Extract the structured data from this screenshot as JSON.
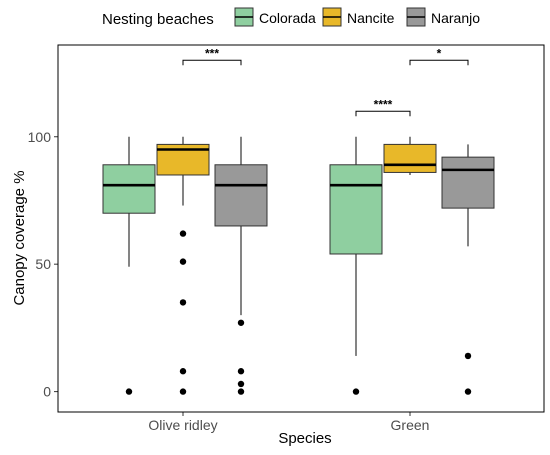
{
  "chart_data": {
    "type": "boxplot",
    "title": "",
    "xlabel": "Species",
    "ylabel": "Canopy coverage %",
    "ylim": [
      -8,
      136
    ],
    "yticks": [
      0,
      50,
      100
    ],
    "grid": false,
    "legend": {
      "title": "Nesting beaches",
      "position": "top",
      "entries": [
        "Colorada",
        "Nancite",
        "Naranjo"
      ]
    },
    "categories": [
      "Olive ridley",
      "Green"
    ],
    "series": [
      {
        "name": "Colorada",
        "color": "#8fcfa0",
        "boxes": [
          {
            "whisker_low": 49,
            "q1": 70,
            "median": 81,
            "q3": 89,
            "whisker_high": 100,
            "outliers": [
              0
            ]
          },
          {
            "whisker_low": 14,
            "q1": 54,
            "median": 81,
            "q3": 89,
            "whisker_high": 100,
            "outliers": [
              0
            ]
          }
        ]
      },
      {
        "name": "Nancite",
        "color": "#e8b829",
        "boxes": [
          {
            "whisker_low": 73,
            "q1": 85,
            "median": 95,
            "q3": 97,
            "whisker_high": 100,
            "outliers": [
              62,
              51,
              35,
              8,
              0
            ]
          },
          {
            "whisker_low": 85,
            "q1": 86,
            "median": 89,
            "q3": 97,
            "whisker_high": 100,
            "outliers": []
          }
        ]
      },
      {
        "name": "Naranjo",
        "color": "#999999",
        "boxes": [
          {
            "whisker_low": 30,
            "q1": 65,
            "median": 81,
            "q3": 89,
            "whisker_high": 100,
            "outliers": [
              27,
              8,
              3,
              0
            ]
          },
          {
            "whisker_low": 57,
            "q1": 72,
            "median": 87,
            "q3": 92,
            "whisker_high": 97,
            "outliers": [
              14,
              0
            ]
          }
        ]
      }
    ],
    "annotations": [
      {
        "category": "Olive ridley",
        "from": "Nancite",
        "to": "Naranjo",
        "y": 130,
        "label": "***"
      },
      {
        "category": "Green",
        "from": "Colorada",
        "to": "Nancite",
        "y": 110,
        "label": "****"
      },
      {
        "category": "Green",
        "from": "Nancite",
        "to": "Naranjo",
        "y": 130,
        "label": "*"
      }
    ]
  }
}
